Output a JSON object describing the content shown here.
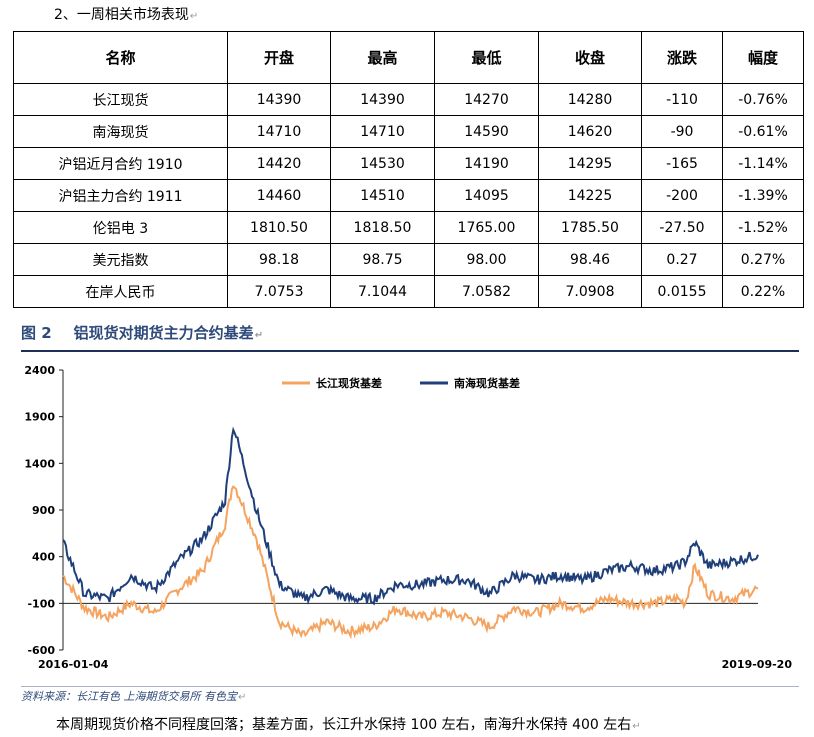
{
  "section_title": "2、一周相关市场表现",
  "table": {
    "headers": [
      "名称",
      "开盘",
      "最高",
      "最低",
      "收盘",
      "涨跌",
      "幅度"
    ],
    "rows": [
      [
        "长江现货",
        "14390",
        "14390",
        "14270",
        "14280",
        "-110",
        "-0.76%"
      ],
      [
        "南海现货",
        "14710",
        "14710",
        "14590",
        "14620",
        "-90",
        "-0.61%"
      ],
      [
        "沪铝近月合约 1910",
        "14420",
        "14530",
        "14190",
        "14295",
        "-165",
        "-1.14%"
      ],
      [
        "沪铝主力合约 1911",
        "14460",
        "14510",
        "14095",
        "14225",
        "-200",
        "-1.39%"
      ],
      [
        "伦铝电 3",
        "1810.50",
        "1818.50",
        "1765.00",
        "1785.50",
        "-27.50",
        "-1.52%"
      ],
      [
        "美元指数",
        "98.18",
        "98.75",
        "98.00",
        "98.46",
        "0.27",
        "0.27%"
      ],
      [
        "在岸人民币",
        "7.0753",
        "7.1044",
        "7.0582",
        "7.0908",
        "0.0155",
        "0.22%"
      ]
    ]
  },
  "figure": {
    "number": "图 2",
    "title": "铝现货对期货主力合约基差"
  },
  "chart_data": {
    "type": "line",
    "title": "",
    "xlabel": "",
    "ylabel": "",
    "x_range": [
      "2016-01-04",
      "2019-09-20"
    ],
    "x_tick_labels": [
      "2016-01-04",
      "2019-09-20"
    ],
    "ylim": [
      -600,
      2400
    ],
    "y_ticks": [
      -600,
      -100,
      400,
      900,
      1400,
      1900,
      2400
    ],
    "grid": false,
    "legend_position": "top-center",
    "series": [
      {
        "name": "长江现货基差",
        "color": "#f4a460",
        "x": [
          "2016-01-04",
          "2016-02-15",
          "2016-04-01",
          "2016-05-16",
          "2016-07-01",
          "2016-08-15",
          "2016-10-03",
          "2016-11-15",
          "2016-12-01",
          "2017-01-15",
          "2017-03-01",
          "2017-04-15",
          "2017-06-01",
          "2017-07-15",
          "2017-09-01",
          "2017-10-15",
          "2017-12-01",
          "2018-01-15",
          "2018-03-01",
          "2018-04-15",
          "2018-06-01",
          "2018-07-15",
          "2018-09-01",
          "2018-10-15",
          "2018-12-01",
          "2019-01-15",
          "2019-03-01",
          "2019-04-15",
          "2019-05-01",
          "2019-05-20",
          "2019-06-15",
          "2019-08-01",
          "2019-09-20"
        ],
        "values": [
          200,
          -150,
          -250,
          -100,
          -200,
          50,
          250,
          750,
          1200,
          600,
          -300,
          -450,
          -300,
          -400,
          -350,
          -150,
          -250,
          -200,
          -250,
          -350,
          -150,
          -200,
          -100,
          -150,
          -50,
          -100,
          -100,
          -50,
          -100,
          300,
          0,
          -50,
          60
        ]
      },
      {
        "name": "南海现货基差",
        "color": "#1f3f7a",
        "x": [
          "2016-01-04",
          "2016-02-15",
          "2016-04-01",
          "2016-05-16",
          "2016-07-01",
          "2016-08-15",
          "2016-10-03",
          "2016-11-15",
          "2016-12-01",
          "2017-01-15",
          "2017-03-01",
          "2017-04-15",
          "2017-06-01",
          "2017-07-15",
          "2017-09-01",
          "2017-10-15",
          "2017-12-01",
          "2018-01-15",
          "2018-03-01",
          "2018-04-15",
          "2018-06-01",
          "2018-07-15",
          "2018-09-01",
          "2018-10-15",
          "2018-12-01",
          "2019-01-15",
          "2019-03-01",
          "2019-04-15",
          "2019-05-01",
          "2019-05-20",
          "2019-06-15",
          "2019-08-01",
          "2019-09-20"
        ],
        "values": [
          550,
          0,
          -50,
          200,
          50,
          350,
          600,
          1000,
          1800,
          900,
          100,
          -50,
          50,
          -50,
          -50,
          100,
          100,
          150,
          150,
          0,
          200,
          150,
          200,
          150,
          250,
          300,
          250,
          300,
          350,
          550,
          300,
          350,
          420
        ]
      }
    ]
  },
  "source": "资料来源：长江有色   上海期货交易所   有色宝",
  "summary": "本周期现货价格不同程度回落；基差方面，长江升水保持 100 左右，南海升水保持 400 左右"
}
